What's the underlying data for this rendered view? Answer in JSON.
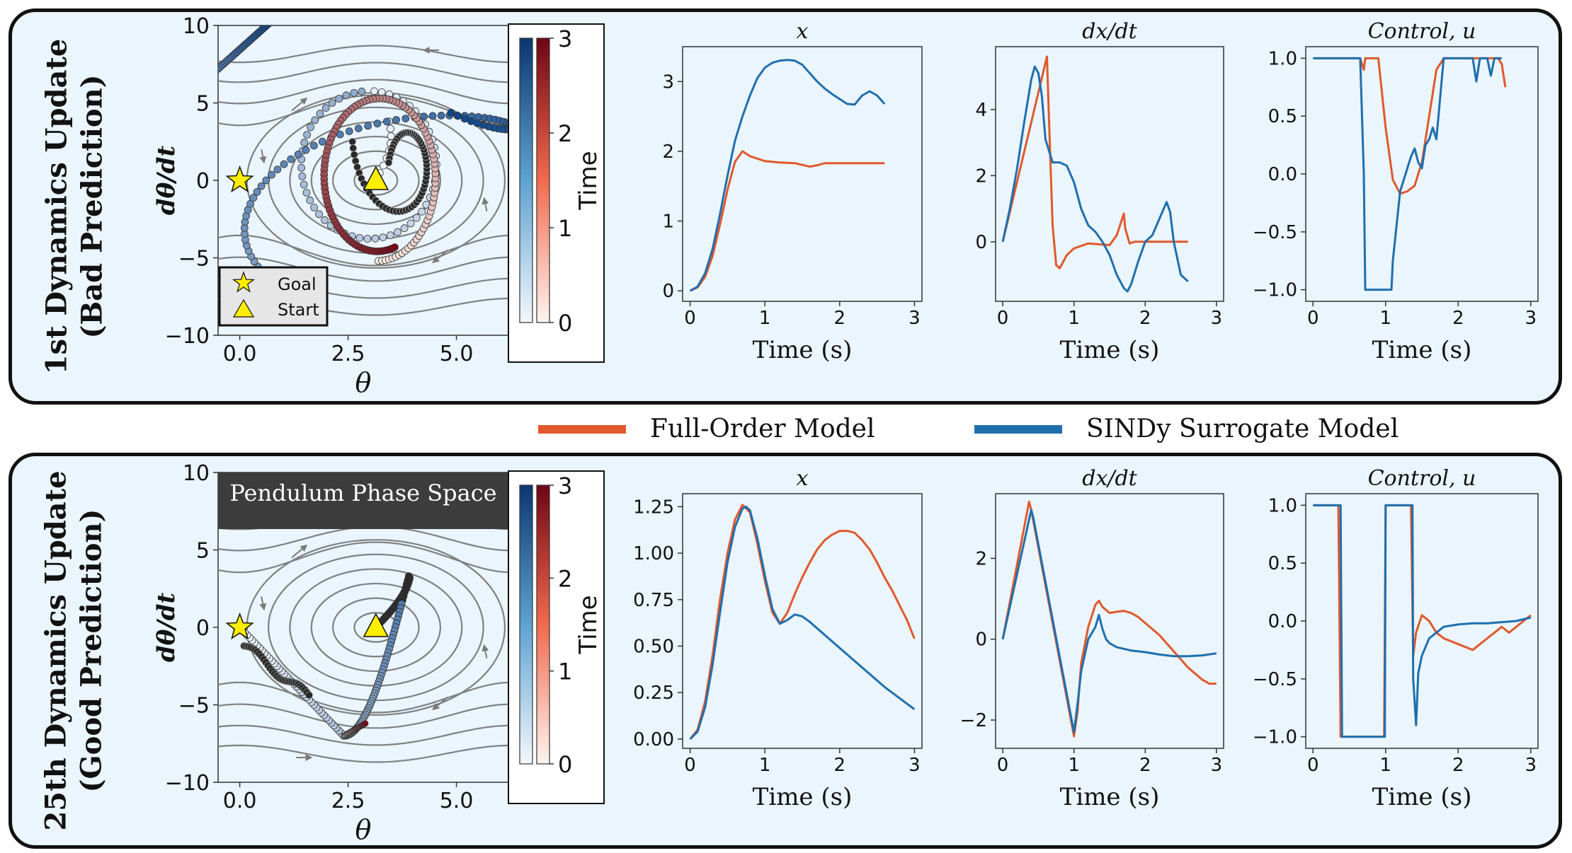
{
  "rows": [
    {
      "title_line1": "1st Dynamics Update",
      "title_line2": "(Bad Prediction)"
    },
    {
      "title_line1": "25th Dynamics Update",
      "title_line2": "(Good Prediction)"
    }
  ],
  "legend": {
    "full_order": {
      "label": "Full-Order Model",
      "color": "#e0582c"
    },
    "sindy": {
      "label": "SINDy Surrogate Model",
      "color": "#1f6fad"
    }
  },
  "phase": {
    "xlabel": "θ",
    "ylabel": "dθ/dt",
    "xticks": [
      "0.0",
      "2.5",
      "5.0"
    ],
    "yticks": [
      "10",
      "5",
      "0",
      "−5",
      "−10"
    ],
    "xlim": [
      -0.5,
      6.2
    ],
    "ylim": [
      -10,
      10
    ],
    "goal_label": "Goal",
    "start_label": "Start",
    "overlay_title": "Pendulum Phase Space",
    "colorbar_label": "Time",
    "colorbar_ticks": [
      "3",
      "2",
      "1",
      "0"
    ],
    "goal_point": [
      0,
      0
    ],
    "start_point": [
      3.14159,
      0
    ],
    "star_color": "#ffee00"
  },
  "chart_data": [
    {
      "type": "line",
      "row": 0,
      "title": "x",
      "xlabel": "Time (s)",
      "ylabel": "",
      "xlim": [
        -0.1,
        3.1
      ],
      "ylim": [
        -0.15,
        3.5
      ],
      "xticks": [
        "0",
        "1",
        "2",
        "3"
      ],
      "xtick_values": [
        0,
        1,
        2,
        3
      ],
      "yticks": [
        "0",
        "1",
        "2",
        "3"
      ],
      "ytick_values": [
        0,
        1,
        2,
        3
      ],
      "series": [
        {
          "name": "Full-Order Model",
          "x": [
            0,
            0.1,
            0.2,
            0.3,
            0.4,
            0.5,
            0.6,
            0.7,
            0.8,
            1.0,
            1.2,
            1.4,
            1.6,
            1.7,
            1.8,
            2.0,
            2.3,
            2.6
          ],
          "values": [
            0,
            0.05,
            0.2,
            0.5,
            0.95,
            1.45,
            1.85,
            2.0,
            1.93,
            1.86,
            1.84,
            1.83,
            1.78,
            1.8,
            1.83,
            1.83,
            1.83,
            1.83
          ]
        },
        {
          "name": "SINDy Surrogate Model",
          "x": [
            0,
            0.1,
            0.2,
            0.3,
            0.4,
            0.5,
            0.6,
            0.7,
            0.8,
            0.9,
            1.0,
            1.1,
            1.2,
            1.3,
            1.4,
            1.5,
            1.6,
            1.7,
            1.8,
            1.9,
            2.0,
            2.1,
            2.2,
            2.3,
            2.4,
            2.5,
            2.6
          ],
          "values": [
            0,
            0.06,
            0.25,
            0.6,
            1.1,
            1.65,
            2.15,
            2.5,
            2.8,
            3.05,
            3.2,
            3.27,
            3.3,
            3.31,
            3.3,
            3.24,
            3.12,
            3.0,
            2.9,
            2.82,
            2.75,
            2.68,
            2.67,
            2.8,
            2.86,
            2.8,
            2.68
          ]
        }
      ]
    },
    {
      "type": "line",
      "row": 0,
      "title": "dx/dt",
      "xlabel": "Time (s)",
      "ylabel": "",
      "xlim": [
        -0.1,
        3.1
      ],
      "ylim": [
        -1.8,
        5.9
      ],
      "xticks": [
        "0",
        "1",
        "2",
        "3"
      ],
      "xtick_values": [
        0,
        1,
        2,
        3
      ],
      "yticks": [
        "0",
        "2",
        "4"
      ],
      "ytick_values": [
        0,
        2,
        4
      ],
      "series": [
        {
          "name": "Full-Order Model",
          "x": [
            0,
            0.62,
            0.66,
            0.7,
            0.75,
            0.8,
            0.9,
            1.0,
            1.2,
            1.5,
            1.6,
            1.7,
            1.72,
            1.78,
            1.85,
            2.0,
            2.3,
            2.6
          ],
          "values": [
            0,
            5.6,
            3.0,
            0.5,
            -0.7,
            -0.8,
            -0.4,
            -0.2,
            -0.05,
            -0.1,
            0.2,
            0.85,
            0.4,
            -0.05,
            0.0,
            0.0,
            0.0,
            0.0
          ]
        },
        {
          "name": "SINDy Surrogate Model",
          "x": [
            0,
            0.1,
            0.2,
            0.3,
            0.4,
            0.45,
            0.5,
            0.55,
            0.6,
            0.7,
            0.8,
            0.9,
            1.0,
            1.1,
            1.2,
            1.3,
            1.4,
            1.5,
            1.6,
            1.7,
            1.75,
            1.8,
            1.9,
            2.0,
            2.1,
            2.2,
            2.3,
            2.35,
            2.4,
            2.5,
            2.6
          ],
          "values": [
            0,
            1.0,
            2.2,
            3.6,
            4.9,
            5.3,
            5.1,
            4.4,
            3.1,
            2.4,
            2.4,
            2.3,
            1.8,
            1.0,
            0.5,
            0.3,
            0.0,
            -0.4,
            -1.0,
            -1.4,
            -1.5,
            -1.3,
            -0.6,
            0.0,
            0.2,
            0.7,
            1.2,
            0.9,
            0.0,
            -1.0,
            -1.2
          ]
        }
      ]
    },
    {
      "type": "line",
      "row": 0,
      "title": "Control, u",
      "xlabel": "Time (s)",
      "ylabel": "",
      "xlim": [
        -0.1,
        3.1
      ],
      "ylim": [
        -1.1,
        1.1
      ],
      "xticks": [
        "0",
        "1",
        "2",
        "3"
      ],
      "xtick_values": [
        0,
        1,
        2,
        3
      ],
      "yticks": [
        "1.0",
        "0.5",
        "0.0",
        "−0.5",
        "−1.0"
      ],
      "ytick_values": [
        1.0,
        0.5,
        0.0,
        -0.5,
        -1.0
      ],
      "series": [
        {
          "name": "Full-Order Model",
          "x": [
            0,
            0.65,
            0.7,
            0.72,
            0.9,
            1.0,
            1.1,
            1.2,
            1.3,
            1.4,
            1.5,
            1.6,
            1.7,
            1.8,
            2.0,
            2.3,
            2.55,
            2.6,
            2.65
          ],
          "values": [
            1,
            1,
            0.9,
            1.0,
            1.0,
            0.4,
            -0.05,
            -0.17,
            -0.15,
            -0.1,
            0.1,
            0.5,
            0.9,
            1.0,
            1.0,
            1.0,
            1.0,
            0.95,
            0.75
          ]
        },
        {
          "name": "SINDy Surrogate Model",
          "x": [
            0,
            0.65,
            0.7,
            0.72,
            1.08,
            1.1,
            1.2,
            1.3,
            1.35,
            1.4,
            1.45,
            1.5,
            1.55,
            1.6,
            1.65,
            1.7,
            1.8,
            2.0,
            2.2,
            2.25,
            2.3,
            2.4,
            2.45,
            2.5,
            2.6
          ],
          "values": [
            1,
            1,
            0.0,
            -1.0,
            -1.0,
            -0.75,
            -0.15,
            0.05,
            0.15,
            0.22,
            0.1,
            0.05,
            0.25,
            0.3,
            0.4,
            0.3,
            1.0,
            1.0,
            1.0,
            0.8,
            1.0,
            1.0,
            0.85,
            1.0,
            1.0
          ]
        }
      ]
    },
    {
      "type": "line",
      "row": 1,
      "title": "x",
      "xlabel": "Time (s)",
      "ylabel": "",
      "xlim": [
        -0.1,
        3.1
      ],
      "ylim": [
        -0.05,
        1.32
      ],
      "xticks": [
        "0",
        "1",
        "2",
        "3"
      ],
      "xtick_values": [
        0,
        1,
        2,
        3
      ],
      "yticks": [
        "1.25",
        "1.00",
        "0.75",
        "0.50",
        "0.25",
        "0.00"
      ],
      "ytick_values": [
        1.25,
        1.0,
        0.75,
        0.5,
        0.25,
        0.0
      ],
      "series": [
        {
          "name": "Full-Order Model",
          "x": [
            0,
            0.1,
            0.2,
            0.3,
            0.4,
            0.5,
            0.6,
            0.7,
            0.8,
            0.9,
            1.0,
            1.1,
            1.2,
            1.3,
            1.4,
            1.5,
            1.6,
            1.7,
            1.8,
            1.9,
            2.0,
            2.1,
            2.2,
            2.3,
            2.4,
            2.5,
            2.6,
            2.7,
            2.8,
            2.9,
            3.0
          ],
          "values": [
            0,
            0.05,
            0.2,
            0.45,
            0.75,
            1.0,
            1.18,
            1.26,
            1.22,
            1.05,
            0.85,
            0.68,
            0.62,
            0.68,
            0.78,
            0.87,
            0.95,
            1.02,
            1.07,
            1.1,
            1.12,
            1.12,
            1.11,
            1.07,
            1.02,
            0.95,
            0.87,
            0.8,
            0.72,
            0.64,
            0.54
          ]
        },
        {
          "name": "SINDy Surrogate Model",
          "x": [
            0,
            0.1,
            0.2,
            0.3,
            0.4,
            0.5,
            0.6,
            0.7,
            0.75,
            0.8,
            0.9,
            1.0,
            1.1,
            1.2,
            1.3,
            1.4,
            1.5,
            1.6,
            1.8,
            2.0,
            2.2,
            2.4,
            2.6,
            2.8,
            3.0
          ],
          "values": [
            0,
            0.04,
            0.17,
            0.4,
            0.68,
            0.95,
            1.14,
            1.24,
            1.25,
            1.23,
            1.08,
            0.88,
            0.7,
            0.62,
            0.64,
            0.67,
            0.66,
            0.63,
            0.56,
            0.49,
            0.42,
            0.35,
            0.28,
            0.22,
            0.16
          ]
        }
      ]
    },
    {
      "type": "line",
      "row": 1,
      "title": "dx/dt",
      "xlabel": "Time (s)",
      "ylabel": "",
      "xlim": [
        -0.1,
        3.1
      ],
      "ylim": [
        -2.7,
        3.6
      ],
      "xticks": [
        "0",
        "1",
        "2",
        "3"
      ],
      "xtick_values": [
        0,
        1,
        2,
        3
      ],
      "yticks": [
        "2",
        "0",
        "−2"
      ],
      "ytick_values": [
        2,
        0,
        -2
      ],
      "series": [
        {
          "name": "Full-Order Model",
          "x": [
            0,
            0.37,
            0.4,
            1.0,
            1.05,
            1.1,
            1.2,
            1.3,
            1.35,
            1.4,
            1.5,
            1.6,
            1.7,
            1.8,
            1.9,
            2.0,
            2.2,
            2.4,
            2.6,
            2.8,
            2.9,
            3.0
          ],
          "values": [
            0,
            3.4,
            3.2,
            -2.4,
            -1.8,
            -0.6,
            0.3,
            0.85,
            0.95,
            0.8,
            0.65,
            0.68,
            0.7,
            0.65,
            0.55,
            0.4,
            0.1,
            -0.3,
            -0.7,
            -1.0,
            -1.1,
            -1.1
          ]
        },
        {
          "name": "SINDy Surrogate Model",
          "x": [
            0,
            0.4,
            0.43,
            1.0,
            1.05,
            1.1,
            1.2,
            1.3,
            1.35,
            1.4,
            1.45,
            1.5,
            1.6,
            1.8,
            2.0,
            2.2,
            2.4,
            2.6,
            2.8,
            3.0
          ],
          "values": [
            0,
            3.2,
            3.0,
            -2.3,
            -1.6,
            -0.8,
            0.0,
            0.3,
            0.6,
            0.25,
            0.0,
            -0.1,
            -0.2,
            -0.28,
            -0.32,
            -0.38,
            -0.42,
            -0.42,
            -0.4,
            -0.35
          ]
        }
      ]
    },
    {
      "type": "line",
      "row": 1,
      "title": "Control, u",
      "xlabel": "Time (s)",
      "ylabel": "",
      "xlim": [
        -0.1,
        3.1
      ],
      "ylim": [
        -1.1,
        1.1
      ],
      "xticks": [
        "0",
        "1",
        "2",
        "3"
      ],
      "xtick_values": [
        0,
        1,
        2,
        3
      ],
      "yticks": [
        "1.0",
        "0.5",
        "0.0",
        "−0.5",
        "−1.0"
      ],
      "ytick_values": [
        1.0,
        0.5,
        0.0,
        -0.5,
        -1.0
      ],
      "series": [
        {
          "name": "Full-Order Model",
          "x": [
            0,
            0.35,
            0.38,
            0.98,
            1.0,
            1.35,
            1.38,
            1.42,
            1.5,
            1.6,
            1.7,
            1.8,
            2.0,
            2.2,
            2.3,
            2.4,
            2.5,
            2.6,
            2.7,
            2.8,
            3.0
          ],
          "values": [
            1,
            1,
            -1,
            -1,
            1,
            1,
            -0.3,
            -0.1,
            0.05,
            0.0,
            -0.1,
            -0.15,
            -0.2,
            -0.25,
            -0.2,
            -0.15,
            -0.1,
            -0.05,
            -0.1,
            -0.05,
            0.05
          ]
        },
        {
          "name": "SINDy Surrogate Model",
          "x": [
            0,
            0.38,
            0.4,
            0.99,
            1.0,
            1.37,
            1.38,
            1.4,
            1.42,
            1.45,
            1.5,
            1.6,
            1.8,
            2.0,
            2.2,
            2.4,
            2.6,
            2.8,
            3.0
          ],
          "values": [
            1,
            1,
            -1,
            -1,
            1,
            1,
            -0.5,
            -0.7,
            -0.9,
            -0.45,
            -0.3,
            -0.15,
            -0.05,
            -0.03,
            -0.02,
            -0.02,
            -0.01,
            0.0,
            0.03
          ]
        }
      ]
    }
  ]
}
